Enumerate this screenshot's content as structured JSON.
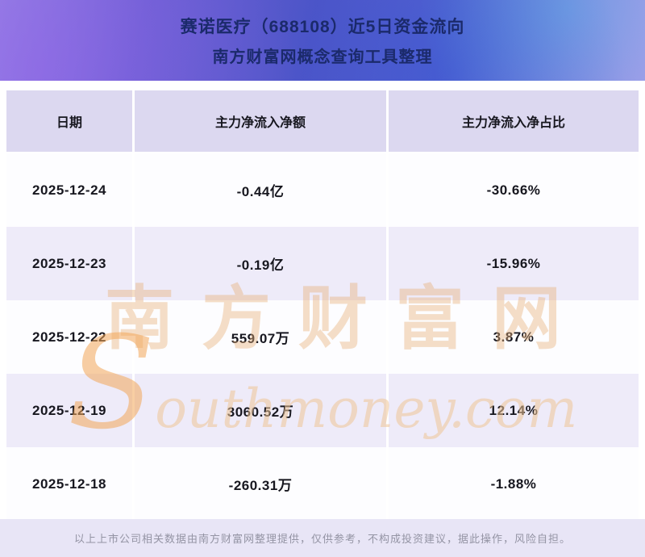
{
  "header": {
    "title_line1": "赛诺医疗（688108）近5日资金流向",
    "title_line2": "南方财富网概念查询工具整理"
  },
  "chart_data": {
    "type": "table",
    "title": "赛诺医疗（688108）近5日资金流向",
    "subtitle": "南方财富网概念查询工具整理",
    "columns": [
      "日期",
      "主力净流入净额",
      "主力净流入净占比"
    ],
    "rows": [
      [
        "2025-12-24",
        "-0.44亿",
        "-30.66%"
      ],
      [
        "2025-12-23",
        "-0.19亿",
        "-15.96%"
      ],
      [
        "2025-12-22",
        "559.07万",
        "3.87%"
      ],
      [
        "2025-12-19",
        "3060.52万",
        "12.14%"
      ],
      [
        "2025-12-18",
        "-260.31万",
        "-1.88%"
      ]
    ]
  },
  "watermark": {
    "cn": "南方财富网",
    "en": "Southmoney.com"
  },
  "footer": {
    "text": "以上上市公司相关数据由南方财富网整理提供，仅供参考，不构成投资建议，据此操作，风险自担。"
  },
  "colors": {
    "banner_purple": "#6a60d2",
    "banner_blue": "#4d55c8",
    "title_navy": "#1b2a6b",
    "header_row_bg": "#dcd8f0",
    "alt_row_bg": "#eeebf9",
    "footer_bg": "#e8e5f6",
    "watermark_orange": "#e8b17a"
  }
}
